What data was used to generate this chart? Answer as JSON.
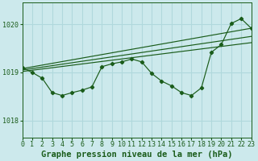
{
  "title": "Graphe pression niveau de la mer (hPa)",
  "bg_color": "#cce9ec",
  "grid_color": "#b0d8dc",
  "line_color": "#1a5c1a",
  "xlim": [
    0,
    23
  ],
  "ylim": [
    1017.65,
    1020.45
  ],
  "yticks": [
    1018,
    1019,
    1020
  ],
  "xticks": [
    0,
    1,
    2,
    3,
    4,
    5,
    6,
    7,
    8,
    9,
    10,
    11,
    12,
    13,
    14,
    15,
    16,
    17,
    18,
    19,
    20,
    21,
    22,
    23
  ],
  "hours": [
    0,
    1,
    2,
    3,
    4,
    5,
    6,
    7,
    8,
    9,
    10,
    11,
    12,
    13,
    14,
    15,
    16,
    17,
    18,
    19,
    20,
    21,
    22,
    23
  ],
  "series_main": [
    1019.1,
    1019.0,
    1018.88,
    1018.58,
    1018.52,
    1018.58,
    1018.63,
    1018.7,
    1019.12,
    1019.18,
    1019.22,
    1019.28,
    1019.22,
    1018.98,
    1018.82,
    1018.72,
    1018.58,
    1018.52,
    1018.68,
    1019.42,
    1019.58,
    1020.02,
    1020.12,
    1019.92
  ],
  "trend1_x": [
    0,
    23
  ],
  "trend1_y": [
    1019.08,
    1019.92
  ],
  "trend2_x": [
    0,
    23
  ],
  "trend2_y": [
    1019.05,
    1019.75
  ],
  "trend3_x": [
    0,
    23
  ],
  "trend3_y": [
    1019.02,
    1019.62
  ],
  "title_fontsize": 7.5,
  "tick_fontsize": 6.0
}
